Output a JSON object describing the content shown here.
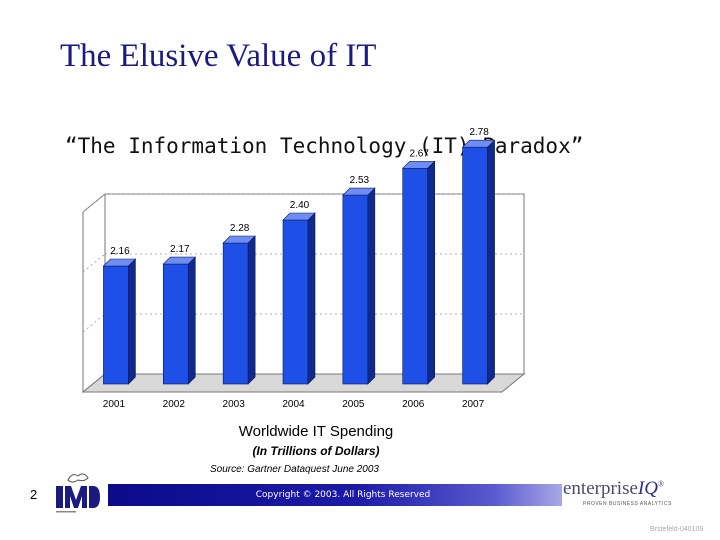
{
  "slide": {
    "title": "The Elusive Value of IT",
    "subtitle": "“The Information Technology (IT) Paradox”",
    "caption_main": "Worldwide IT Spending",
    "caption_units": "(In Trillions of Dollars)",
    "source": "Source:  Gartner Dataquest June 2003",
    "page_number": "2",
    "footer_text": "Copyright © 2003. All Rights Reserved",
    "brand_name_1": "enterprise",
    "brand_name_2": "IQ",
    "brand_mark": "®",
    "brand_tagline": "PROVEN BUSINESS ANALYTICS",
    "slide_id": "Brstefeld-040109"
  },
  "colors": {
    "title": "#1a1a80",
    "bar_front": "#1e4fe6",
    "bar_side": "#0f2a8c",
    "bar_top": "#6e8cf2",
    "footer_bar": "#0a0a8a"
  },
  "icons": {
    "left_logo": "imd-logo"
  },
  "chart_data": {
    "type": "bar",
    "style": "3d",
    "categories": [
      "2001",
      "2002",
      "2003",
      "2004",
      "2005",
      "2006",
      "2007"
    ],
    "values": [
      2.16,
      2.17,
      2.28,
      2.4,
      2.53,
      2.67,
      2.78
    ],
    "data_labels": [
      "2.16",
      "2.17",
      "2.28",
      "2.40",
      "2.53",
      "2.67",
      "2.78"
    ],
    "grid": true,
    "legend": "none"
  }
}
